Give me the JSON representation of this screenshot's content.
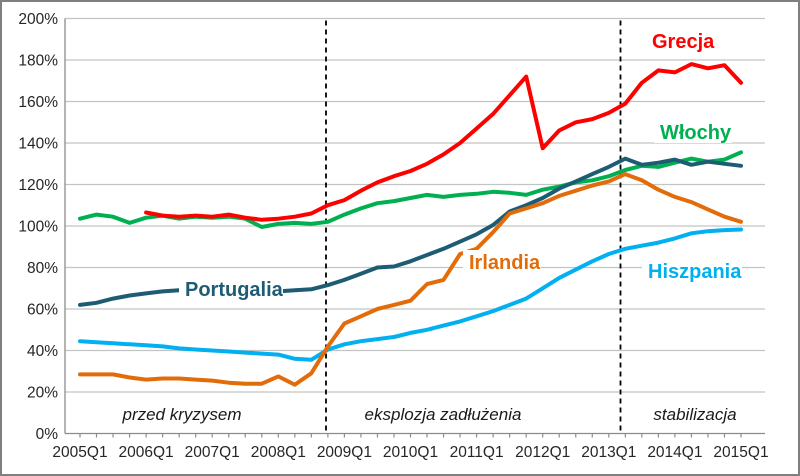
{
  "chart_data": {
    "type": "line",
    "unit": "% GDP (government debt to GDP ratio)",
    "x_start": "2005Q1",
    "x_end": "2015Q1",
    "x_tick_labels": [
      "2005Q1",
      "2006Q1",
      "2007Q1",
      "2008Q1",
      "2009Q1",
      "2010Q1",
      "2011Q1",
      "2012Q1",
      "2013Q1",
      "2014Q1",
      "2015Q1"
    ],
    "y_tick_labels": [
      "0%",
      "20%",
      "40%",
      "60%",
      "80%",
      "100%",
      "120%",
      "140%",
      "160%",
      "180%",
      "200%"
    ],
    "ylim": [
      0,
      200
    ],
    "grid": "horizontal",
    "series": [
      {
        "name": "Hiszpania",
        "color": "#00B0F0",
        "start_index": 0,
        "values": [
          44.5,
          44,
          43.5,
          43,
          42.5,
          42,
          41,
          40.5,
          40,
          39.5,
          39,
          38.5,
          38,
          36,
          35.5,
          40.5,
          43,
          44.5,
          45.5,
          46.5,
          48.5,
          50,
          52,
          54,
          56.5,
          59,
          62,
          65,
          70,
          75,
          79,
          83,
          86.5,
          89,
          90.5,
          92,
          94,
          96.5,
          97.5,
          98,
          98.3
        ]
      },
      {
        "name": "Włochy",
        "color": "#00B050",
        "start_index": 0,
        "values": [
          103.5,
          105.5,
          104.5,
          101.5,
          104,
          105,
          103.5,
          104.5,
          104,
          104.5,
          103.5,
          99.5,
          101,
          101.5,
          101,
          102,
          105.5,
          108.5,
          111,
          112,
          113.5,
          115,
          114,
          115,
          115.5,
          116.5,
          116,
          115,
          117.5,
          119,
          121,
          122,
          124,
          127,
          129,
          128.5,
          130.5,
          132.5,
          131,
          132,
          135.5
        ]
      },
      {
        "name": "Portugalia",
        "color": "#1E5C74",
        "start_index": 0,
        "values": [
          62,
          63,
          65,
          66.5,
          67.5,
          68.5,
          69,
          68.5,
          68.5,
          69.5,
          69.5,
          68.5,
          68.5,
          69,
          69.5,
          71.5,
          74,
          77,
          80,
          80.5,
          83,
          86,
          89,
          92.5,
          96,
          100.5,
          107,
          110,
          113.5,
          118,
          121.5,
          125,
          128.5,
          132.5,
          129.5,
          130.5,
          132,
          129.5,
          131,
          130,
          129
        ]
      },
      {
        "name": "Irlandia",
        "color": "#E36C0A",
        "start_index": 0,
        "values": [
          28.5,
          28.5,
          28.5,
          27,
          26,
          26.5,
          26.5,
          26,
          25.5,
          24.5,
          24,
          24,
          27.5,
          23.5,
          29,
          42,
          53,
          56.5,
          60,
          62,
          64,
          72,
          74,
          86.5,
          89,
          97,
          106,
          108.5,
          111,
          114.5,
          117,
          119.5,
          121.5,
          125,
          122,
          117.5,
          114,
          111.5,
          108,
          104.5,
          102
        ]
      },
      {
        "name": "Grecja",
        "color": "#FF0000",
        "start_index": 4,
        "start_quarter": "2006Q1",
        "values": [
          106.5,
          105,
          104.5,
          105,
          104.5,
          105.5,
          104,
          103,
          103.5,
          104.5,
          106,
          110,
          112.5,
          117,
          121,
          124,
          126.5,
          130,
          134.5,
          140,
          147,
          154,
          163,
          172,
          137.5,
          146,
          150,
          151.5,
          154.5,
          159,
          169,
          175,
          174,
          178,
          176,
          177.5,
          169
        ]
      }
    ],
    "phase_dividers": [
      {
        "between": "2008Q4 / 2009Q1"
      },
      {
        "between": "2013Q1 / 2013Q2"
      }
    ],
    "annotations": [
      {
        "text": "przed kryzysem"
      },
      {
        "text": "eksplozja zadłużenia"
      },
      {
        "text": "stabilizacja"
      }
    ],
    "legend_position": "labels-next-to-lines"
  }
}
